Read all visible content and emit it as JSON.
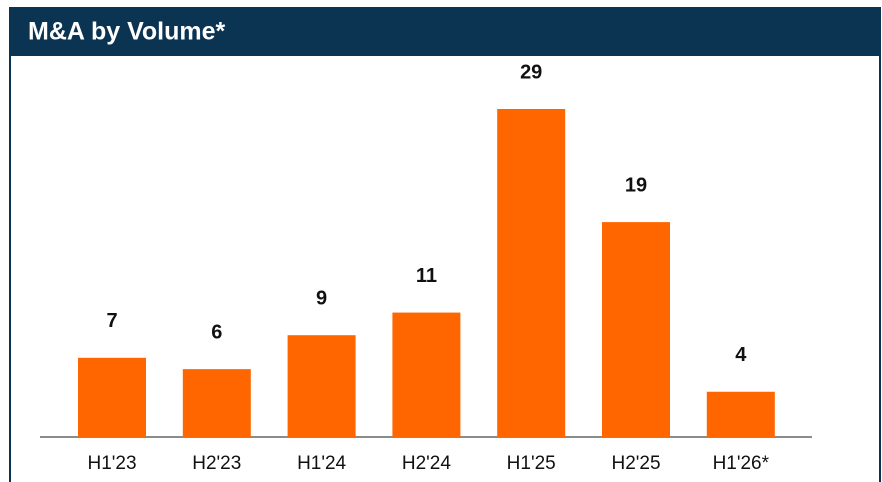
{
  "chart_data": {
    "type": "bar",
    "title": "M&A by Volume*",
    "categories": [
      "H1'23",
      "H2'23",
      "H1'24",
      "H2'24",
      "H1'25",
      "H2'25",
      "H1'26*"
    ],
    "values": [
      7,
      6,
      9,
      11,
      29,
      19,
      4
    ],
    "color": "#ff6600"
  }
}
